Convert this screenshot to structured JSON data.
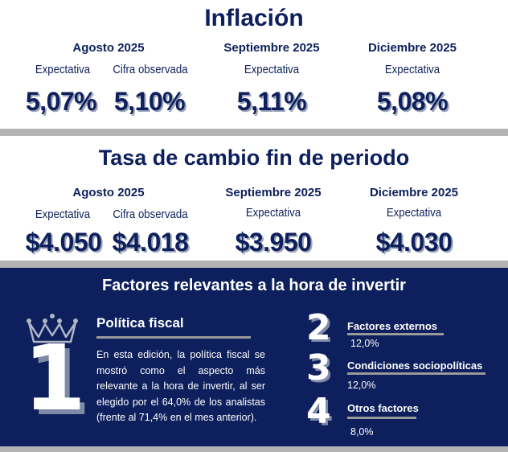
{
  "inflacion": {
    "title": "Inflación",
    "agosto": {
      "period": "Agosto 2025",
      "exp_label": "Expectativa",
      "obs_label": "Cifra observada",
      "exp": "5,07%",
      "obs": "5,10%"
    },
    "septiembre": {
      "period": "Septiembre 2025",
      "exp_label": "Expectativa",
      "exp": "5,11%"
    },
    "diciembre": {
      "period": "Diciembre 2025",
      "exp_label": "Expectativa",
      "exp": "5,08%"
    }
  },
  "tasa": {
    "title": "Tasa de cambio fin de periodo",
    "agosto": {
      "period": "Agosto 2025",
      "exp_label": "Expectativa",
      "obs_label": "Cifra observada",
      "exp": "$4.050",
      "obs": "$4.018"
    },
    "septiembre": {
      "period": "Septiembre 2025",
      "exp_label": "Expectativa",
      "exp": "$3.950"
    },
    "diciembre": {
      "period": "Diciembre 2025",
      "exp_label": "Expectativa",
      "exp": "$4.030"
    }
  },
  "factores": {
    "title": "Factores relevantes a la hora de invertir",
    "first": {
      "number": "1",
      "name": "Política fiscal",
      "text": "En esta edición, la política fiscal se mostró como el aspecto más relevante a la hora de invertir, al ser elegido por el 64,0% de los analistas (frente al 71,4% en el mes anterior)."
    },
    "others": [
      {
        "number": "2",
        "name": "Factores externos",
        "value": "12,0%"
      },
      {
        "number": "3",
        "name": "Condiciones sociopolíticas",
        "value": "12,0%"
      },
      {
        "number": "4",
        "name": "Otros factores",
        "value": "8,0%"
      }
    ]
  }
}
